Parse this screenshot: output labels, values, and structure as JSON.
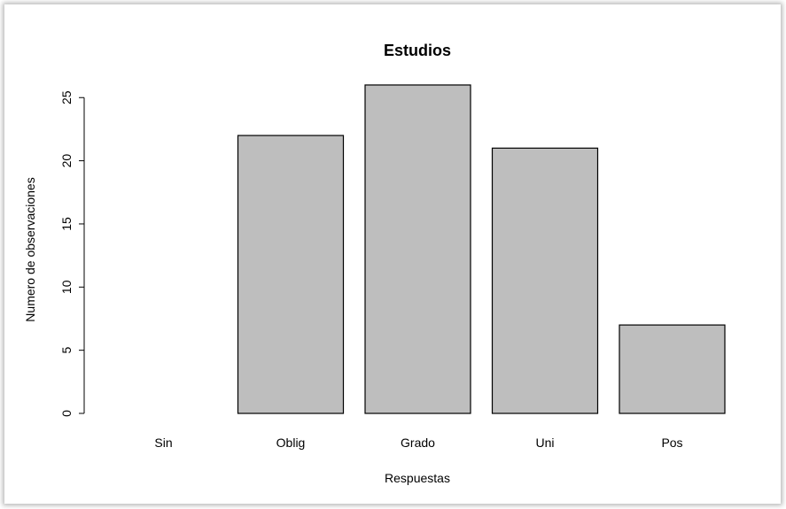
{
  "chart_data": {
    "type": "bar",
    "title": "Estudios",
    "xlabel": "Respuestas",
    "ylabel": "Numero de observaciones",
    "categories": [
      "Sin",
      "Oblig",
      "Grado",
      "Uni",
      "Pos"
    ],
    "values": [
      0,
      22,
      26,
      21,
      7
    ],
    "yticks": [
      0,
      5,
      10,
      15,
      20,
      25
    ],
    "ylim": [
      0,
      26
    ],
    "bar_color": "#bebebe",
    "grid": false,
    "legend": false
  }
}
